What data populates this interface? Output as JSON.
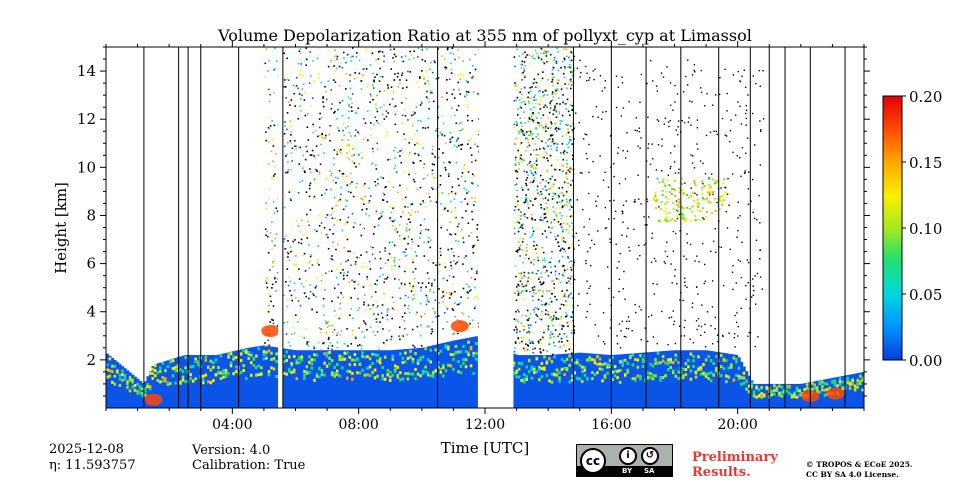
{
  "chart_data": {
    "type": "heatmap",
    "title": "Volume Depolarization Ratio at 355 nm of pollyxt_cyp at Limassol",
    "xlabel": "Time [UTC]",
    "ylabel": "Height [km]",
    "xlim": [
      0,
      24
    ],
    "ylim": [
      0,
      15
    ],
    "x_ticks": [
      4,
      8,
      12,
      16,
      20
    ],
    "x_tick_labels": [
      "04:00",
      "08:00",
      "12:00",
      "16:00",
      "20:00"
    ],
    "y_ticks": [
      2,
      4,
      6,
      8,
      10,
      12,
      14
    ],
    "y_tick_labels": [
      "2",
      "4",
      "6",
      "8",
      "10",
      "12",
      "14"
    ],
    "colorbar": {
      "min": 0.0,
      "max": 0.2,
      "ticks": [
        0.0,
        0.05,
        0.1,
        0.15,
        0.2
      ],
      "tick_labels": [
        "0.00",
        "0.05",
        "0.10",
        "0.15",
        "0.20"
      ],
      "colormap": [
        "#0a3cd8",
        "#0090ff",
        "#00d8e0",
        "#20e070",
        "#a8e820",
        "#f8f000",
        "#ffa800",
        "#ff4800",
        "#e00000"
      ]
    },
    "no_data_intervals": [
      [
        5.45,
        5.6
      ],
      [
        11.8,
        12.9
      ]
    ],
    "dense_noise_intervals": [
      [
        5.0,
        11.8
      ],
      [
        12.9,
        14.8
      ]
    ],
    "near_surface_layer_top_km": [
      [
        0.0,
        2.3
      ],
      [
        1.2,
        1.0
      ],
      [
        1.5,
        1.8
      ],
      [
        2.5,
        2.2
      ],
      [
        3.5,
        2.2
      ],
      [
        4.5,
        2.5
      ],
      [
        5.0,
        2.6
      ],
      [
        6.0,
        2.4
      ],
      [
        7.0,
        2.4
      ],
      [
        8.0,
        2.4
      ],
      [
        9.0,
        2.4
      ],
      [
        10.0,
        2.5
      ],
      [
        11.0,
        2.8
      ],
      [
        11.8,
        3.0
      ],
      [
        13.0,
        2.2
      ],
      [
        14.0,
        2.2
      ],
      [
        15.0,
        2.3
      ],
      [
        16.0,
        2.2
      ],
      [
        17.0,
        2.3
      ],
      [
        18.0,
        2.4
      ],
      [
        19.0,
        2.4
      ],
      [
        20.0,
        2.2
      ],
      [
        20.5,
        1.0
      ],
      [
        22.0,
        1.0
      ],
      [
        24.0,
        1.5
      ]
    ],
    "features": [
      {
        "label": "dust_layer",
        "x": [
          17.3,
          19.6
        ],
        "y": [
          7.8,
          9.6
        ],
        "value": 0.1
      }
    ]
  },
  "meta": {
    "date": "2025-12-08",
    "eta": "η: 11.593757",
    "version": "Version: 4.0",
    "calibration": "Calibration: True"
  },
  "notice": {
    "preliminary_1": "Preliminary",
    "preliminary_2": "Results.",
    "copyright_1": "© TROPOS & ECoE 2025.",
    "copyright_2": "CC BY SA 4.0 License.",
    "license_by": "BY",
    "license_sa": "SA"
  }
}
